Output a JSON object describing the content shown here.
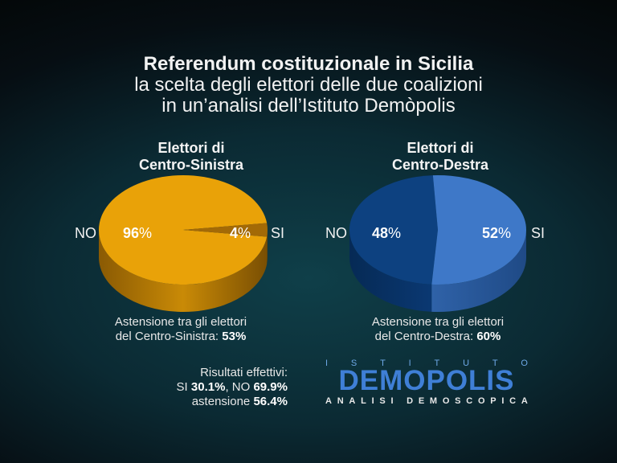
{
  "title": {
    "line1": "Referendum costituzionale in Sicilia",
    "line2": "la scelta degli elettori delle due coalizioni",
    "line3": "in un’analisi dell’Istituto Demòpolis"
  },
  "chart_data": [
    {
      "type": "pie",
      "title_line1": "Elettori di",
      "title_line2": "Centro-Sinistra",
      "slices": [
        {
          "label": "NO",
          "value": 96,
          "color": "#e9a208"
        },
        {
          "label": "SI",
          "value": 4,
          "color": "#a36a06"
        }
      ],
      "note_text": "Astensione tra gli elettori",
      "note_text2": "del Centro-Sinistra: ",
      "note_value": "53%"
    },
    {
      "type": "pie",
      "title_line1": "Elettori di",
      "title_line2": "Centro-Destra",
      "slices": [
        {
          "label": "NO",
          "value": 48,
          "color": "#0d4180"
        },
        {
          "label": "SI",
          "value": 52,
          "color": "#3e78c8"
        }
      ],
      "note_text": "Astensione tra gli elettori",
      "note_text2": "del Centro-Destra: ",
      "note_value": "60%"
    }
  ],
  "pct_sign": "%",
  "results": {
    "heading": "Risultati effettivi:",
    "si_label": "SI ",
    "si_value": "30.1%",
    "sep": ", NO ",
    "no_value": "69.9%",
    "abst_label": "astensione ",
    "abst_value": "56.4%"
  },
  "logo": {
    "top_letters": [
      "I",
      "S",
      "T",
      "I",
      "T",
      "U",
      "T",
      "O"
    ],
    "main": "DEMOPOLIS",
    "bottom_letters": [
      "A",
      "N",
      "A",
      "L",
      "I",
      "S",
      "I",
      " ",
      "D",
      "E",
      "M",
      "O",
      "S",
      "C",
      "O",
      "P",
      "I",
      "C",
      "A"
    ]
  }
}
